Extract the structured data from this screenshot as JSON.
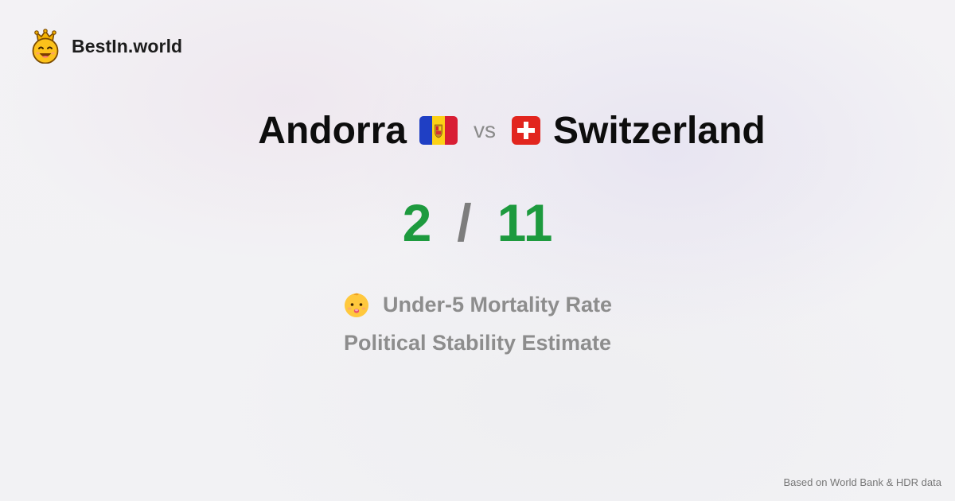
{
  "brand": {
    "name": "BestIn.world",
    "logo_icon": "crowned-smiley-icon"
  },
  "comparison": {
    "country_a": {
      "name": "Andorra",
      "flag_icon": "andorra-flag-icon"
    },
    "separator": "vs",
    "country_b": {
      "name": "Switzerland",
      "flag_icon": "switzerland-flag-icon"
    }
  },
  "scores": {
    "a": "2",
    "separator": "/",
    "b": "11",
    "color": "#1d9a3e"
  },
  "metrics": {
    "primary": {
      "label": "Under-5 Mortality Rate",
      "icon": "baby-face-icon"
    },
    "secondary": {
      "label": "Political Stability Estimate"
    }
  },
  "footer": {
    "source": "Based on World Bank & HDR data"
  }
}
